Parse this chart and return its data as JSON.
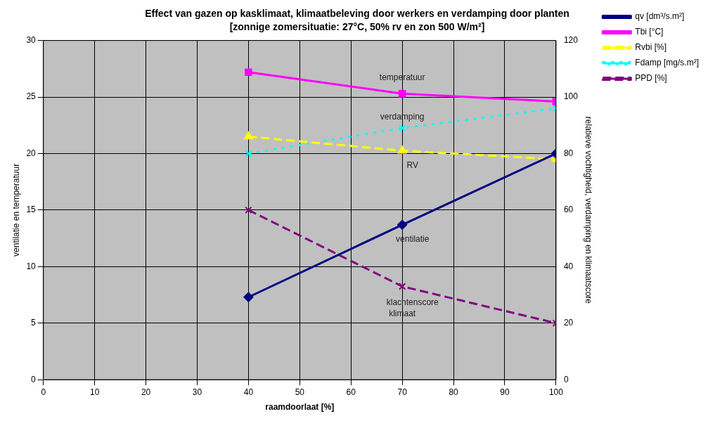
{
  "chart_data": {
    "type": "line",
    "title": "Effect van gazen op kasklimaat, klimaatbeleving door werkers en verdamping door planten",
    "subtitle": "[zonnige zomersituatie: 27°C, 50% rv en zon 500 W/m²]",
    "xlabel": "raamdoorlaat [%]",
    "ylabel": "ventilatie en temperatuur",
    "y2label": "relatieve vochtigheid, verdamping en klimaatscore",
    "x": [
      40,
      70,
      100
    ],
    "series": [
      {
        "name": "qv [dm³/s.m²]",
        "color": "#000080",
        "values": [
          7.3,
          13.7,
          20.0
        ],
        "marker": "diamond",
        "line_style": "solid"
      },
      {
        "name": "Tbi [°C]",
        "color": "#ff00ff",
        "values": [
          27.2,
          25.3,
          24.6
        ],
        "marker": "square",
        "line_style": "solid"
      },
      {
        "name": "Rvbi [%]",
        "color": "#ffff00",
        "values": [
          86,
          81,
          78
        ],
        "axis": "y2",
        "marker": "triangle",
        "line_style": "dashed"
      },
      {
        "name": "Fdamp [mg/s.m²]",
        "color": "#00ffff",
        "values": [
          80,
          89,
          96
        ],
        "axis": "y2",
        "marker": "cross",
        "line_style": "dotted"
      },
      {
        "name": "PPD [%]",
        "color": "#800080",
        "values": [
          60,
          33,
          20
        ],
        "axis": "y2",
        "marker": "cross",
        "line_style": "dashed"
      }
    ],
    "xlim": [
      0,
      100
    ],
    "xticks": [
      0,
      10,
      20,
      30,
      40,
      50,
      60,
      70,
      80,
      90,
      100
    ],
    "ylim": [
      0,
      30
    ],
    "yticks": [
      0,
      5,
      10,
      15,
      20,
      25,
      30
    ],
    "y2lim": [
      0,
      120
    ],
    "y2ticks": [
      0,
      20,
      40,
      60,
      80,
      100,
      120
    ],
    "grid": true,
    "legend": "top right",
    "annotations": [
      "temperatuur",
      "verdamping",
      "RV",
      "ventilatie",
      "klachtenscore",
      "klimaat"
    ]
  }
}
